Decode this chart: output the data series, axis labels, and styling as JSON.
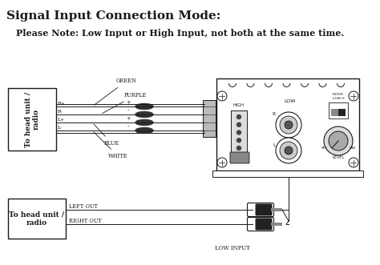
{
  "title": "Signal Input Connection Mode:",
  "note": "Please Note: Low Input or High Input, not both at the same time.",
  "bg_color": "#ffffff",
  "fg_color": "#1a1a1a",
  "title_fontsize": 11,
  "note_fontsize": 8,
  "box1_label": "To head unit /\nradio",
  "box2_label": "To head unit /\nradio",
  "channel_labels": [
    "R+",
    "R-",
    "L+",
    "L-"
  ],
  "plus_minus": [
    "+",
    "-",
    "+",
    "-"
  ],
  "wire_color_labels": [
    "GREEN",
    "PURPLE",
    "BLUE",
    "WHITE"
  ],
  "bottom_labels": [
    "LEFT OUT",
    "RIGHT OUT",
    "LOW INPUT"
  ],
  "amp_text": [
    "HIGH",
    "LOW",
    "R",
    "L",
    "FILTER\nLOW H",
    "LEVEL"
  ]
}
